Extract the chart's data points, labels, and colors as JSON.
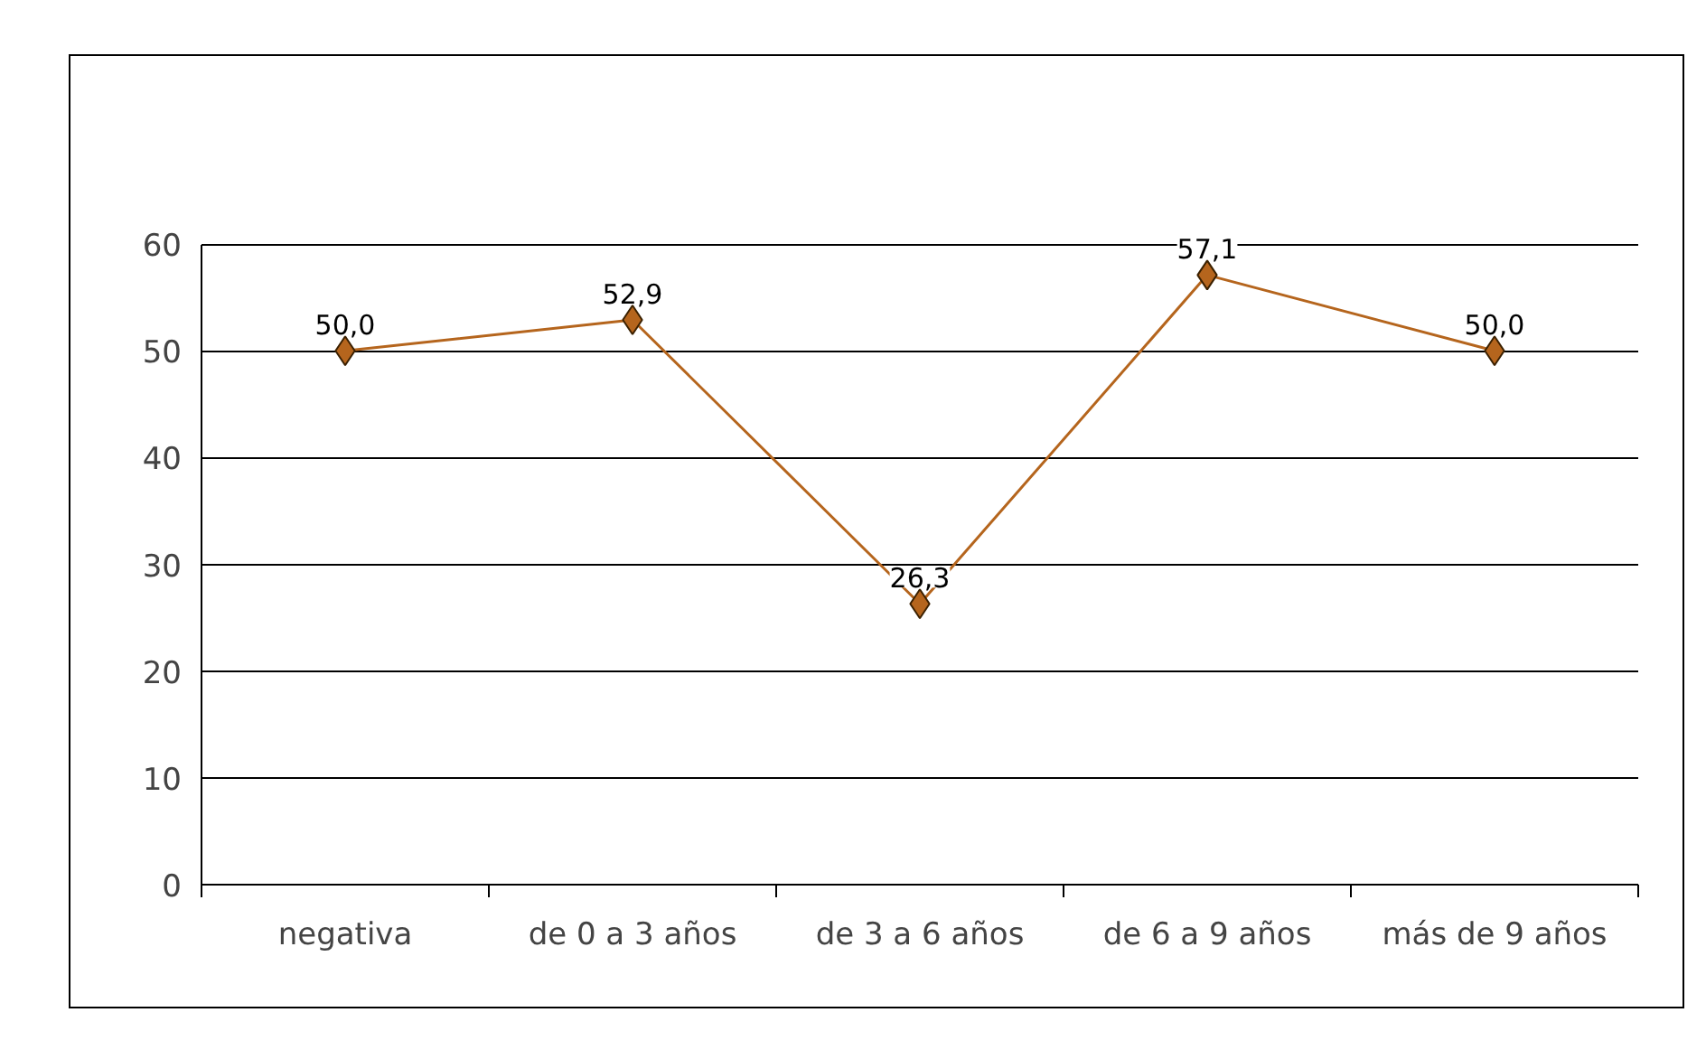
{
  "chart_data": {
    "type": "line",
    "categories": [
      "negativa",
      "de 0 a 3 años",
      "de 3 a 6 años",
      "de 6 a 9 años",
      "más de 9 años"
    ],
    "series": [
      {
        "color": "#b5651d",
        "values": [
          50.0,
          52.9,
          26.3,
          57.1,
          50.0
        ],
        "value_labels": [
          "50,0",
          "52,9",
          "26,3",
          "57,1",
          "50,0"
        ]
      }
    ],
    "ylim": [
      0,
      60
    ],
    "yticks": [
      0,
      10,
      20,
      30,
      40,
      50,
      60
    ],
    "grid": "y",
    "marker": "diamond",
    "line_style": "solid"
  }
}
